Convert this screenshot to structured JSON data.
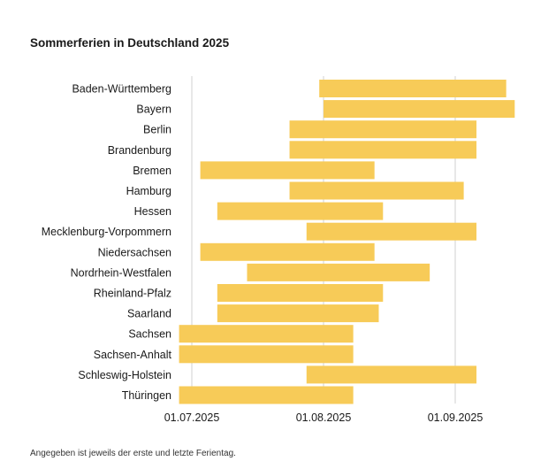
{
  "title": "Sommerferien in Deutschland 2025",
  "footnote": "Angegeben ist jeweils der erste und letzte Ferientag.",
  "colors": {
    "bar": "#f7cb58",
    "grid": "#d0d0d0"
  },
  "chart_data": {
    "type": "bar",
    "orientation": "horizontal",
    "subtype": "range",
    "title": "Sommerferien in Deutschland 2025",
    "xlim": [
      "2025-07-01",
      "2025-09-23"
    ],
    "grid": true,
    "x_ticks": [
      "2025-07-01",
      "2025-08-01",
      "2025-09-01"
    ],
    "x_tick_labels": [
      "01.07.2025",
      "01.08.2025",
      "01.09.2025"
    ],
    "categories": [
      "Baden-Württemberg",
      "Bayern",
      "Berlin",
      "Brandenburg",
      "Bremen",
      "Hamburg",
      "Hessen",
      "Mecklenburg-Vorpommern",
      "Niedersachsen",
      "Nordrhein-Westfalen",
      "Rheinland-Pfalz",
      "Saarland",
      "Sachsen",
      "Sachsen-Anhalt",
      "Schleswig-Holstein",
      "Thüringen"
    ],
    "ranges": [
      {
        "start": "2025-07-31",
        "end": "2025-09-13"
      },
      {
        "start": "2025-08-01",
        "end": "2025-09-15"
      },
      {
        "start": "2025-07-24",
        "end": "2025-09-06"
      },
      {
        "start": "2025-07-24",
        "end": "2025-09-06"
      },
      {
        "start": "2025-07-03",
        "end": "2025-08-13"
      },
      {
        "start": "2025-07-24",
        "end": "2025-09-03"
      },
      {
        "start": "2025-07-07",
        "end": "2025-08-15"
      },
      {
        "start": "2025-07-28",
        "end": "2025-09-06"
      },
      {
        "start": "2025-07-03",
        "end": "2025-08-13"
      },
      {
        "start": "2025-07-14",
        "end": "2025-08-26"
      },
      {
        "start": "2025-07-07",
        "end": "2025-08-15"
      },
      {
        "start": "2025-07-07",
        "end": "2025-08-14"
      },
      {
        "start": "2025-06-28",
        "end": "2025-08-08"
      },
      {
        "start": "2025-06-28",
        "end": "2025-08-08"
      },
      {
        "start": "2025-07-28",
        "end": "2025-09-06"
      },
      {
        "start": "2025-06-28",
        "end": "2025-08-08"
      }
    ]
  }
}
